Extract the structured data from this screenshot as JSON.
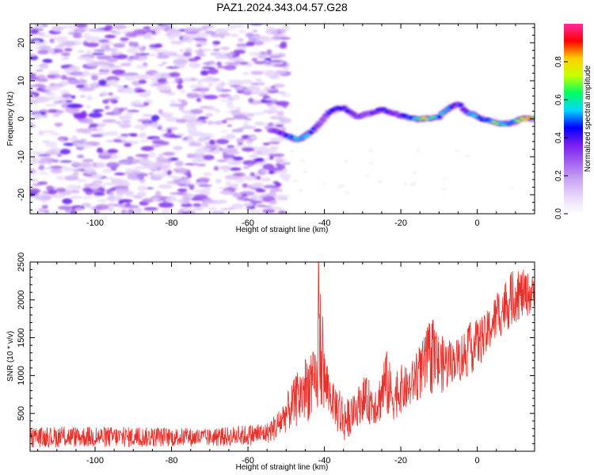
{
  "chart_data": [
    {
      "type": "heatmap",
      "title": "PAZ1.2024.343.04.57.G28",
      "xlabel": "Height of straight line (km)",
      "ylabel": "Frequency (Hz)",
      "xlim": [
        -117,
        15
      ],
      "ylim": [
        -25,
        25
      ],
      "xticks": [
        -100,
        -80,
        -60,
        -40,
        -20,
        0
      ],
      "yticks": [
        -20,
        -10,
        0,
        10,
        20
      ],
      "colorbar": {
        "label": "Normalized spectral amplitude",
        "range": [
          0.0,
          1.0
        ],
        "ticks": [
          0.0,
          0.2,
          0.4,
          0.6,
          0.8
        ],
        "colormap": [
          "#ffffff",
          "#e8d8fa",
          "#c9a3f3",
          "#a060ee",
          "#7a1ef0",
          "#0000ff",
          "#00d8ff",
          "#00ff60",
          "#c8ff00",
          "#ffd000",
          "#ff0000",
          "#ff2aa0"
        ]
      },
      "ridge": {
        "x": [
          -53,
          -50,
          -47,
          -45,
          -43,
          -41,
          -39,
          -37,
          -35,
          -33,
          -31,
          -28,
          -25,
          -22,
          -19,
          -16,
          -13,
          -10,
          -7,
          -5,
          -3,
          -1,
          1,
          3,
          5,
          7,
          9,
          12,
          15
        ],
        "freq_hz": [
          -3,
          -4.5,
          -5.5,
          -4.5,
          -3,
          -1,
          1.5,
          2.5,
          3,
          1.5,
          0.5,
          1.5,
          2.5,
          1.5,
          0.5,
          0,
          0,
          0.5,
          3,
          4,
          2,
          1,
          0,
          -0.5,
          -1,
          -1.5,
          -1,
          0,
          0
        ],
        "amplitude": [
          0.3,
          0.4,
          0.55,
          0.5,
          0.4,
          0.35,
          0.35,
          0.4,
          0.5,
          0.35,
          0.3,
          0.35,
          0.4,
          0.35,
          0.45,
          0.55,
          0.75,
          0.5,
          0.45,
          0.4,
          0.45,
          0.5,
          0.5,
          0.55,
          0.6,
          0.55,
          0.6,
          0.7,
          0.8
        ]
      }
    },
    {
      "type": "line",
      "title": "",
      "xlabel": "Height of straight line (km)",
      "ylabel": "SNR (10 * v/v)",
      "xlim": [
        -117,
        15
      ],
      "ylim": [
        0,
        2500
      ],
      "xticks": [
        -100,
        -80,
        -60,
        -40,
        -20,
        0
      ],
      "yticks": [
        500,
        1000,
        1500,
        2000,
        2500
      ],
      "color": "#e8302a",
      "envelope": {
        "x": [
          -117,
          -110,
          -100,
          -90,
          -80,
          -70,
          -60,
          -55,
          -52,
          -50,
          -48,
          -46,
          -44,
          -42,
          -41,
          -40,
          -38,
          -36,
          -35,
          -34,
          -32,
          -30,
          -28,
          -26,
          -24,
          -22,
          -20,
          -18,
          -16,
          -14,
          -12,
          -10,
          -8,
          -6,
          -4,
          -2,
          0,
          2,
          4,
          6,
          8,
          10,
          12,
          14,
          15
        ],
        "min": [
          50,
          50,
          50,
          50,
          60,
          60,
          70,
          100,
          150,
          250,
          300,
          350,
          400,
          450,
          500,
          500,
          450,
          150,
          100,
          150,
          300,
          400,
          350,
          350,
          450,
          400,
          500,
          550,
          650,
          700,
          750,
          750,
          800,
          950,
          900,
          1000,
          1100,
          1200,
          1400,
          1500,
          1600,
          1700,
          1750,
          1800,
          1900
        ],
        "max": [
          300,
          330,
          330,
          320,
          310,
          300,
          350,
          380,
          550,
          750,
          950,
          1150,
          1350,
          1300,
          2500,
          1350,
          900,
          900,
          750,
          700,
          750,
          1000,
          950,
          900,
          1400,
          1000,
          1150,
          1100,
          1300,
          1500,
          1800,
          1550,
          1500,
          1450,
          1600,
          1700,
          1750,
          1800,
          2000,
          2200,
          2300,
          2450,
          2400,
          2350,
          2300
        ]
      }
    }
  ]
}
